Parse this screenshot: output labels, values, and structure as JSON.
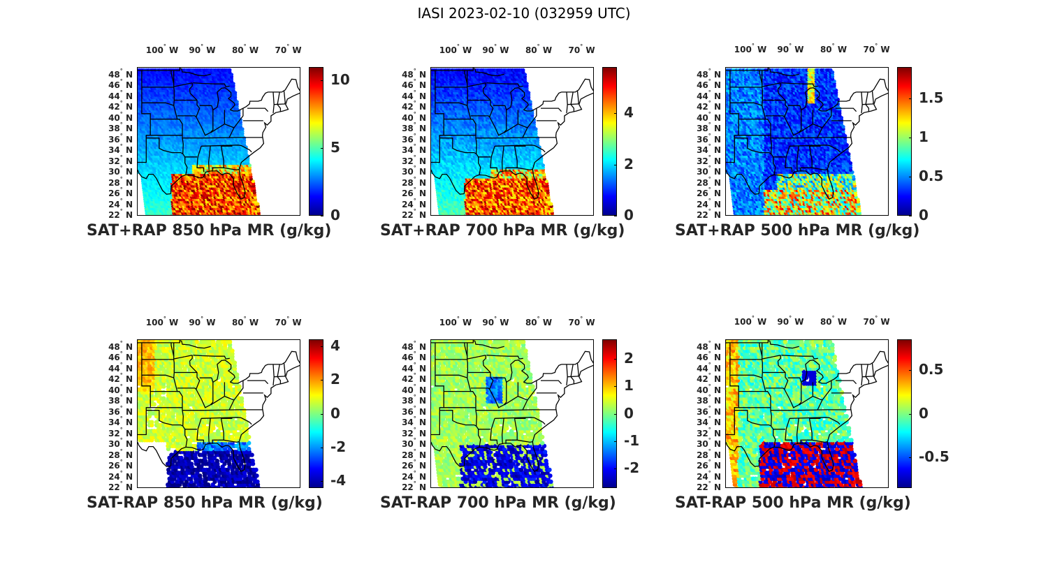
{
  "figure": {
    "title": "IASI 2023-02-10 (032959 UTC)",
    "lon_labels": [
      "100° W",
      "90° W",
      "80° W",
      "70° W"
    ],
    "lat_labels": [
      "48° N",
      "46° N",
      "44° N",
      "42° N",
      "40° N",
      "38° N",
      "36° N",
      "34° N",
      "32° N",
      "30° N",
      "28° N",
      "26° N",
      "24° N",
      "22° N"
    ],
    "colormap": "jet"
  },
  "panels": [
    {
      "title": "SAT+RAP 850 hPa MR (g/kg)",
      "clim": [
        0,
        11
      ],
      "ticks": [
        {
          "v": 0,
          "label": "0"
        },
        {
          "v": 5,
          "label": "5"
        },
        {
          "v": 10,
          "label": "10"
        }
      ],
      "field": "total850"
    },
    {
      "title": "SAT+RAP 700 hPa MR (g/kg)",
      "clim": [
        0,
        5.8
      ],
      "ticks": [
        {
          "v": 0,
          "label": "0"
        },
        {
          "v": 2,
          "label": "2"
        },
        {
          "v": 4,
          "label": "4"
        }
      ],
      "field": "total700"
    },
    {
      "title": "SAT+RAP 500 hPa MR (g/kg)",
      "clim": [
        0,
        1.9
      ],
      "ticks": [
        {
          "v": 0,
          "label": "0"
        },
        {
          "v": 0.5,
          "label": "0.5"
        },
        {
          "v": 1,
          "label": "1"
        },
        {
          "v": 1.5,
          "label": "1.5"
        }
      ],
      "field": "total500"
    },
    {
      "title": "SAT-RAP 850 hPa MR (g/kg)",
      "clim": [
        -4.4,
        4.4
      ],
      "ticks": [
        {
          "v": -4,
          "label": "-4"
        },
        {
          "v": -2,
          "label": "-2"
        },
        {
          "v": 0,
          "label": "0"
        },
        {
          "v": 2,
          "label": "2"
        },
        {
          "v": 4,
          "label": "4"
        }
      ],
      "field": "diff850"
    },
    {
      "title": "SAT-RAP 700 hPa MR (g/kg)",
      "clim": [
        -2.7,
        2.7
      ],
      "ticks": [
        {
          "v": -2,
          "label": "-2"
        },
        {
          "v": -1,
          "label": "-1"
        },
        {
          "v": 0,
          "label": "0"
        },
        {
          "v": 1,
          "label": "1"
        },
        {
          "v": 2,
          "label": "2"
        }
      ],
      "field": "diff700"
    },
    {
      "title": "SAT-RAP 500 hPa MR (g/kg)",
      "clim": [
        -0.85,
        0.85
      ],
      "ticks": [
        {
          "v": -0.5,
          "label": "-0.5"
        },
        {
          "v": 0,
          "label": "0"
        },
        {
          "v": 0.5,
          "label": "0.5"
        }
      ],
      "field": "diff500"
    }
  ]
}
